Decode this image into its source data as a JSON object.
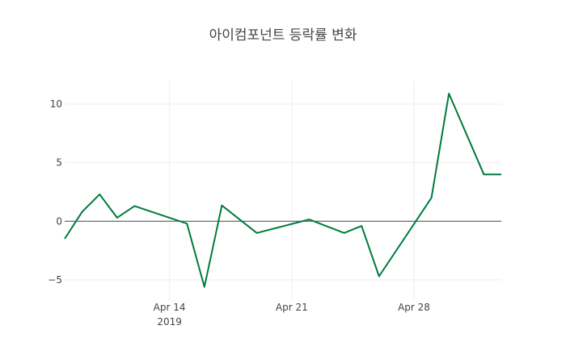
{
  "chart_data": {
    "type": "line",
    "title": "아이컴포넌트 등락률 변화",
    "xlabel": "",
    "ylabel": "",
    "x": [
      "2019-04-08",
      "2019-04-09",
      "2019-04-10",
      "2019-04-11",
      "2019-04-12",
      "2019-04-15",
      "2019-04-16",
      "2019-04-17",
      "2019-04-19",
      "2019-04-22",
      "2019-04-24",
      "2019-04-25",
      "2019-04-26",
      "2019-04-29",
      "2019-04-30",
      "2019-05-02",
      "2019-05-03"
    ],
    "series": [
      {
        "name": "등락률",
        "color": "#007a3d",
        "values": [
          -1.5,
          0.8,
          2.3,
          0.3,
          1.3,
          -0.2,
          -5.6,
          1.35,
          -1.0,
          0.15,
          -1.0,
          -0.4,
          -4.7,
          2.0,
          10.9,
          4.0,
          4.0
        ]
      }
    ],
    "ylim": [
      -6.8,
      12
    ],
    "xlim": [
      "2019-04-08",
      "2019-05-03"
    ],
    "yticks": [
      10,
      5,
      0,
      -5
    ],
    "ytick_labels": [
      "10",
      "5",
      "0",
      "−5"
    ],
    "xticks": [
      "2019-04-14",
      "2019-04-21",
      "2019-04-28"
    ],
    "xtick_labels": [
      "Apr 14",
      "Apr 21",
      "Apr 28"
    ],
    "xtick_year": "2019",
    "grid": true,
    "legend": "none"
  }
}
